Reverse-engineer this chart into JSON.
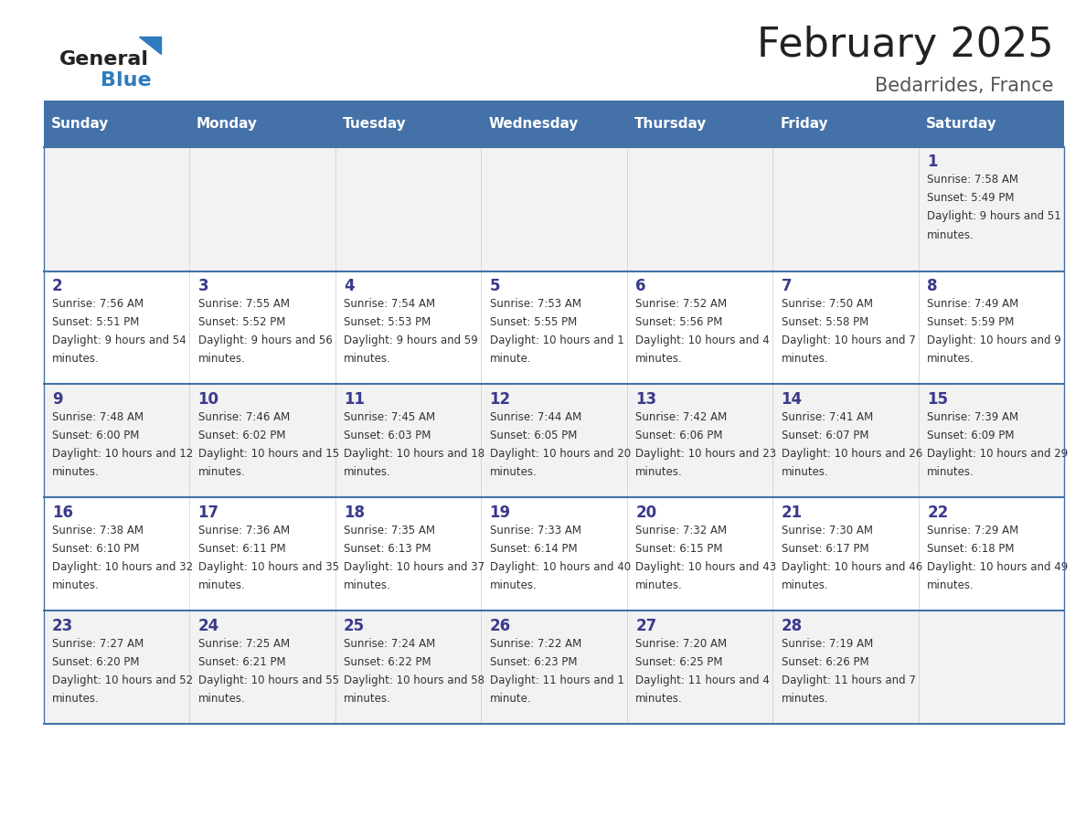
{
  "title": "February 2025",
  "subtitle": "Bedarrides, France",
  "days_of_week": [
    "Sunday",
    "Monday",
    "Tuesday",
    "Wednesday",
    "Thursday",
    "Friday",
    "Saturday"
  ],
  "header_bg": "#4472A8",
  "header_text": "#FFFFFF",
  "row_bg_odd": "#F2F2F2",
  "row_bg_even": "#FFFFFF",
  "day_number_color": "#3A3A8C",
  "cell_text_color": "#333333",
  "title_color": "#222222",
  "subtitle_color": "#555555",
  "divider_color": "#4472A8",
  "logo_general_color": "#222222",
  "logo_blue_color": "#2E7BBF",
  "calendar_data": [
    [
      null,
      null,
      null,
      null,
      null,
      null,
      {
        "day": 1,
        "sunrise": "7:58 AM",
        "sunset": "5:49 PM",
        "daylight": "9 hours and 51 minutes."
      }
    ],
    [
      {
        "day": 2,
        "sunrise": "7:56 AM",
        "sunset": "5:51 PM",
        "daylight": "9 hours and 54 minutes."
      },
      {
        "day": 3,
        "sunrise": "7:55 AM",
        "sunset": "5:52 PM",
        "daylight": "9 hours and 56 minutes."
      },
      {
        "day": 4,
        "sunrise": "7:54 AM",
        "sunset": "5:53 PM",
        "daylight": "9 hours and 59 minutes."
      },
      {
        "day": 5,
        "sunrise": "7:53 AM",
        "sunset": "5:55 PM",
        "daylight": "10 hours and 1 minute."
      },
      {
        "day": 6,
        "sunrise": "7:52 AM",
        "sunset": "5:56 PM",
        "daylight": "10 hours and 4 minutes."
      },
      {
        "day": 7,
        "sunrise": "7:50 AM",
        "sunset": "5:58 PM",
        "daylight": "10 hours and 7 minutes."
      },
      {
        "day": 8,
        "sunrise": "7:49 AM",
        "sunset": "5:59 PM",
        "daylight": "10 hours and 9 minutes."
      }
    ],
    [
      {
        "day": 9,
        "sunrise": "7:48 AM",
        "sunset": "6:00 PM",
        "daylight": "10 hours and 12 minutes."
      },
      {
        "day": 10,
        "sunrise": "7:46 AM",
        "sunset": "6:02 PM",
        "daylight": "10 hours and 15 minutes."
      },
      {
        "day": 11,
        "sunrise": "7:45 AM",
        "sunset": "6:03 PM",
        "daylight": "10 hours and 18 minutes."
      },
      {
        "day": 12,
        "sunrise": "7:44 AM",
        "sunset": "6:05 PM",
        "daylight": "10 hours and 20 minutes."
      },
      {
        "day": 13,
        "sunrise": "7:42 AM",
        "sunset": "6:06 PM",
        "daylight": "10 hours and 23 minutes."
      },
      {
        "day": 14,
        "sunrise": "7:41 AM",
        "sunset": "6:07 PM",
        "daylight": "10 hours and 26 minutes."
      },
      {
        "day": 15,
        "sunrise": "7:39 AM",
        "sunset": "6:09 PM",
        "daylight": "10 hours and 29 minutes."
      }
    ],
    [
      {
        "day": 16,
        "sunrise": "7:38 AM",
        "sunset": "6:10 PM",
        "daylight": "10 hours and 32 minutes."
      },
      {
        "day": 17,
        "sunrise": "7:36 AM",
        "sunset": "6:11 PM",
        "daylight": "10 hours and 35 minutes."
      },
      {
        "day": 18,
        "sunrise": "7:35 AM",
        "sunset": "6:13 PM",
        "daylight": "10 hours and 37 minutes."
      },
      {
        "day": 19,
        "sunrise": "7:33 AM",
        "sunset": "6:14 PM",
        "daylight": "10 hours and 40 minutes."
      },
      {
        "day": 20,
        "sunrise": "7:32 AM",
        "sunset": "6:15 PM",
        "daylight": "10 hours and 43 minutes."
      },
      {
        "day": 21,
        "sunrise": "7:30 AM",
        "sunset": "6:17 PM",
        "daylight": "10 hours and 46 minutes."
      },
      {
        "day": 22,
        "sunrise": "7:29 AM",
        "sunset": "6:18 PM",
        "daylight": "10 hours and 49 minutes."
      }
    ],
    [
      {
        "day": 23,
        "sunrise": "7:27 AM",
        "sunset": "6:20 PM",
        "daylight": "10 hours and 52 minutes."
      },
      {
        "day": 24,
        "sunrise": "7:25 AM",
        "sunset": "6:21 PM",
        "daylight": "10 hours and 55 minutes."
      },
      {
        "day": 25,
        "sunrise": "7:24 AM",
        "sunset": "6:22 PM",
        "daylight": "10 hours and 58 minutes."
      },
      {
        "day": 26,
        "sunrise": "7:22 AM",
        "sunset": "6:23 PM",
        "daylight": "11 hours and 1 minute."
      },
      {
        "day": 27,
        "sunrise": "7:20 AM",
        "sunset": "6:25 PM",
        "daylight": "11 hours and 4 minutes."
      },
      {
        "day": 28,
        "sunrise": "7:19 AM",
        "sunset": "6:26 PM",
        "daylight": "11 hours and 7 minutes."
      },
      null
    ]
  ]
}
